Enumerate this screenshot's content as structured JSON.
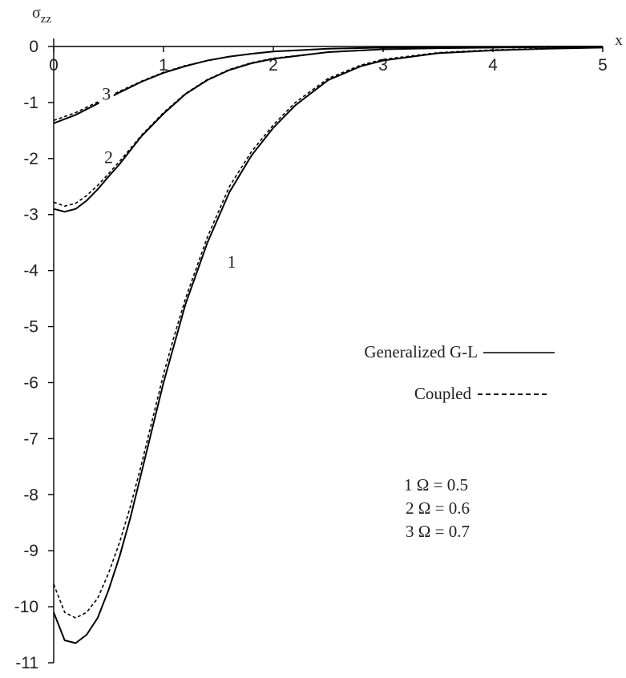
{
  "chart_data": {
    "type": "line",
    "xlabel": "x",
    "ylabel_main": "σ",
    "ylabel_sub": "zz",
    "xlim": [
      0,
      5
    ],
    "ylim": [
      -11,
      0
    ],
    "x_ticks": [
      "0",
      "1",
      "2",
      "3",
      "4",
      "5"
    ],
    "y_ticks": [
      "0",
      "-1",
      "-2",
      "-3",
      "-4",
      "-5",
      "-6",
      "-7",
      "-8",
      "-9",
      "-10",
      "-11"
    ],
    "grid": false,
    "legend": [
      {
        "label": "Generalized G-L",
        "style": "solid"
      },
      {
        "label": "Coupled",
        "style": "dashed"
      }
    ],
    "omega_legend": [
      {
        "label": "1   Ω = 0.5"
      },
      {
        "label": "2   Ω = 0.6"
      },
      {
        "label": "3   Ω = 0.7"
      }
    ],
    "series": [
      {
        "curve": "1",
        "style": "solid",
        "x": [
          0,
          0.1,
          0.2,
          0.3,
          0.4,
          0.5,
          0.6,
          0.7,
          0.8,
          0.9,
          1.0,
          1.1,
          1.2,
          1.4,
          1.6,
          1.8,
          2.0,
          2.2,
          2.5,
          2.8,
          3.0,
          3.5,
          4.0,
          4.5,
          5.0
        ],
        "y": [
          -10.1,
          -10.6,
          -10.65,
          -10.5,
          -10.2,
          -9.7,
          -9.1,
          -8.4,
          -7.6,
          -6.8,
          -6.0,
          -5.3,
          -4.6,
          -3.5,
          -2.6,
          -1.95,
          -1.45,
          -1.05,
          -0.6,
          -0.35,
          -0.25,
          -0.12,
          -0.07,
          -0.04,
          -0.02
        ]
      },
      {
        "curve": "1",
        "style": "dashed",
        "x": [
          0,
          0.1,
          0.2,
          0.3,
          0.4,
          0.5,
          0.6,
          0.7,
          0.8,
          0.9,
          1.0,
          1.1,
          1.2,
          1.4,
          1.6,
          1.8,
          2.0,
          2.2,
          2.5,
          2.8,
          3.0,
          3.5,
          4.0,
          4.5,
          5.0
        ],
        "y": [
          -9.6,
          -10.1,
          -10.2,
          -10.1,
          -9.85,
          -9.4,
          -8.85,
          -8.2,
          -7.45,
          -6.65,
          -5.85,
          -5.15,
          -4.5,
          -3.4,
          -2.5,
          -1.88,
          -1.4,
          -1.0,
          -0.57,
          -0.33,
          -0.23,
          -0.11,
          -0.06,
          -0.035,
          -0.02
        ]
      },
      {
        "curve": "2",
        "style": "solid",
        "x": [
          0,
          0.1,
          0.2,
          0.3,
          0.4,
          0.5,
          0.6,
          0.7,
          0.8,
          1.0,
          1.2,
          1.4,
          1.6,
          1.8,
          2.0,
          2.5,
          3.0,
          3.5,
          4.0,
          4.5,
          5.0
        ],
        "y": [
          -2.9,
          -2.95,
          -2.9,
          -2.75,
          -2.55,
          -2.32,
          -2.1,
          -1.85,
          -1.6,
          -1.2,
          -0.85,
          -0.6,
          -0.42,
          -0.3,
          -0.22,
          -0.1,
          -0.05,
          -0.03,
          -0.02,
          -0.01,
          -0.01
        ]
      },
      {
        "curve": "2",
        "style": "dashed",
        "x": [
          0,
          0.1,
          0.2,
          0.3,
          0.4,
          0.5,
          0.6,
          0.7,
          0.8,
          1.0,
          1.2,
          1.4,
          1.6,
          1.8,
          2.0,
          2.5,
          3.0,
          3.5,
          4.0,
          4.5,
          5.0
        ],
        "y": [
          -2.78,
          -2.85,
          -2.8,
          -2.66,
          -2.48,
          -2.27,
          -2.05,
          -1.82,
          -1.58,
          -1.18,
          -0.84,
          -0.59,
          -0.41,
          -0.29,
          -0.21,
          -0.1,
          -0.05,
          -0.03,
          -0.02,
          -0.01,
          -0.01
        ]
      },
      {
        "curve": "3",
        "style": "solid",
        "x": [
          0,
          0.2,
          0.4,
          0.6,
          0.8,
          1.0,
          1.2,
          1.4,
          1.6,
          1.8,
          2.0,
          2.5,
          3.0,
          3.5,
          4.0,
          4.5,
          5.0
        ],
        "y": [
          -1.37,
          -1.22,
          -1.02,
          -0.82,
          -0.63,
          -0.47,
          -0.35,
          -0.25,
          -0.18,
          -0.13,
          -0.09,
          -0.04,
          -0.02,
          -0.01,
          -0.01,
          0,
          0
        ]
      },
      {
        "curve": "3",
        "style": "dashed",
        "x": [
          0,
          0.2,
          0.4,
          0.6,
          0.8,
          1.0,
          1.2,
          1.4,
          1.6,
          1.8,
          2.0,
          2.5,
          3.0,
          3.5,
          4.0,
          4.5,
          5.0
        ],
        "y": [
          -1.32,
          -1.18,
          -0.99,
          -0.8,
          -0.62,
          -0.46,
          -0.34,
          -0.25,
          -0.18,
          -0.13,
          -0.09,
          -0.04,
          -0.02,
          -0.01,
          -0.01,
          0,
          0
        ]
      }
    ],
    "curve_labels": [
      {
        "text": "1",
        "x": 1.62,
        "y": -3.95
      },
      {
        "text": "2",
        "x": 0.5,
        "y": -2.08
      },
      {
        "text": "3",
        "x": 0.48,
        "y": -0.95
      }
    ]
  }
}
